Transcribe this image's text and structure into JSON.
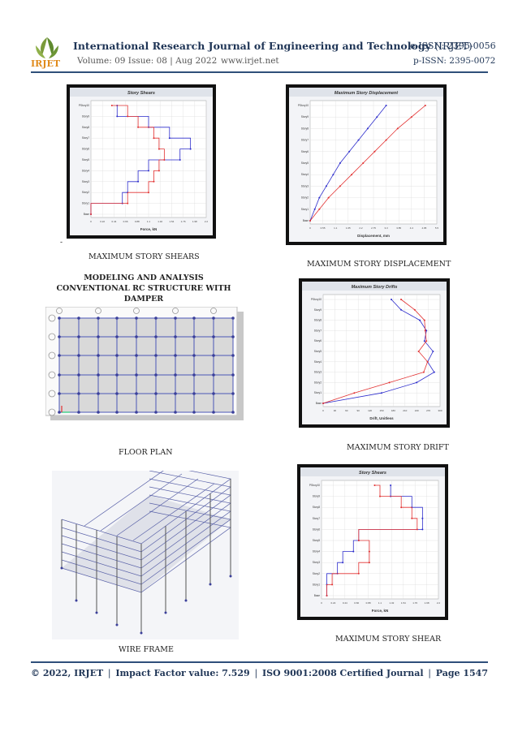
{
  "header": {
    "logo_text": "IRJET",
    "journal_name": "International Research Journal of Engineering and Technology",
    "journal_abbr": "(IRJET)",
    "eissn": "e-ISSN: 2395-0056",
    "volume_issue": "Volume: 09 Issue: 08 | Aug 2022",
    "website": "www.irjet.net",
    "pissn": "p-ISSN: 2395-0072"
  },
  "section_heading": "MODELING AND ANALYSIS CONVENTIONAL RC STRUCTURE WITH DAMPER",
  "figures": {
    "f1_caption": "MAXIMUM STORY SHEARS",
    "f2_caption": "MAXIMUM STORY DISPLACEMENT",
    "f3_caption": "FLOOR PLAN",
    "f4_caption": "MAXIMUM STORY DRIFT",
    "f5_caption": "WIRE FRAME",
    "f6_caption": "MAXIMUM STORY SHEAR"
  },
  "footer": {
    "copyright": "© 2022, IRJET",
    "impact": "Impact Factor value: 7.529",
    "iso": "ISO 9001:2008 Certified Journal",
    "page": "Page 1547",
    "sep": "|"
  },
  "colors": {
    "series_x": "#2c2ccc",
    "series_y": "#e23030",
    "header_blue": "#1f3556"
  },
  "chart_data": [
    {
      "type": "line",
      "title": "Story Shears",
      "xlabel": "Force, kN",
      "stories": [
        "Base",
        "Story1",
        "Story2",
        "Story3",
        "Story4",
        "Story5",
        "Story6",
        "Story7",
        "Story8",
        "Story9",
        "PStory10"
      ],
      "series": [
        {
          "values": [
            0.0,
            0.6,
            0.7,
            0.9,
            1.1,
            1.7,
            1.9,
            1.5,
            1.1,
            0.5,
            0.5
          ]
        },
        {
          "values": [
            0.0,
            0.7,
            1.1,
            1.2,
            1.3,
            1.4,
            1.3,
            1.2,
            0.9,
            0.7,
            0.4
          ]
        }
      ],
      "xlim": [
        0,
        2.2
      ]
    },
    {
      "type": "line",
      "title": "Maximum Story Displacement",
      "xlabel": "Displacement, mm",
      "stories": [
        "Base",
        "Story1",
        "Story2",
        "Story3",
        "Story4",
        "Story5",
        "Story6",
        "Story7",
        "Story8",
        "Story9",
        "PStory10"
      ],
      "series": [
        {
          "values": [
            0.0,
            0.2,
            0.4,
            0.7,
            1.0,
            1.3,
            1.7,
            2.1,
            2.5,
            2.9,
            3.3
          ]
        },
        {
          "values": [
            0.0,
            0.4,
            0.8,
            1.3,
            1.8,
            2.3,
            2.8,
            3.3,
            3.8,
            4.4,
            5.0
          ]
        }
      ],
      "xlim": [
        0,
        5.5
      ]
    },
    {
      "type": "line",
      "title": "Maximum Story Drifts",
      "xlabel": "Drift, Unitless",
      "stories": [
        "Base",
        "Story1",
        "Story2",
        "Story3",
        "Story4",
        "Story5",
        "Story6",
        "Story7",
        "Story8",
        "Story9",
        "PStory10"
      ],
      "series": [
        {
          "values": [
            0,
            150,
            240,
            285,
            268,
            282,
            260,
            265,
            248,
            200,
            175
          ]
        },
        {
          "values": [
            0,
            80,
            170,
            258,
            268,
            245,
            265,
            262,
            260,
            235,
            200
          ]
        }
      ],
      "xlim": [
        0,
        300
      ]
    },
    {
      "type": "line",
      "title": "Story Shears",
      "xlabel": "Force, kN",
      "stories": [
        "Base",
        "Story1",
        "Story2",
        "Story3",
        "Story4",
        "Story5",
        "Story6",
        "Story7",
        "Story8",
        "Story9",
        "PStory10"
      ],
      "series": [
        {
          "values": [
            0.1,
            0.1,
            0.3,
            0.4,
            0.6,
            0.7,
            1.9,
            1.9,
            1.7,
            1.3,
            1.3
          ]
        },
        {
          "values": [
            0.1,
            0.2,
            0.7,
            0.9,
            0.9,
            0.7,
            1.8,
            1.7,
            1.5,
            1.1,
            1.0
          ]
        }
      ],
      "xlim": [
        0,
        2.2
      ]
    }
  ]
}
